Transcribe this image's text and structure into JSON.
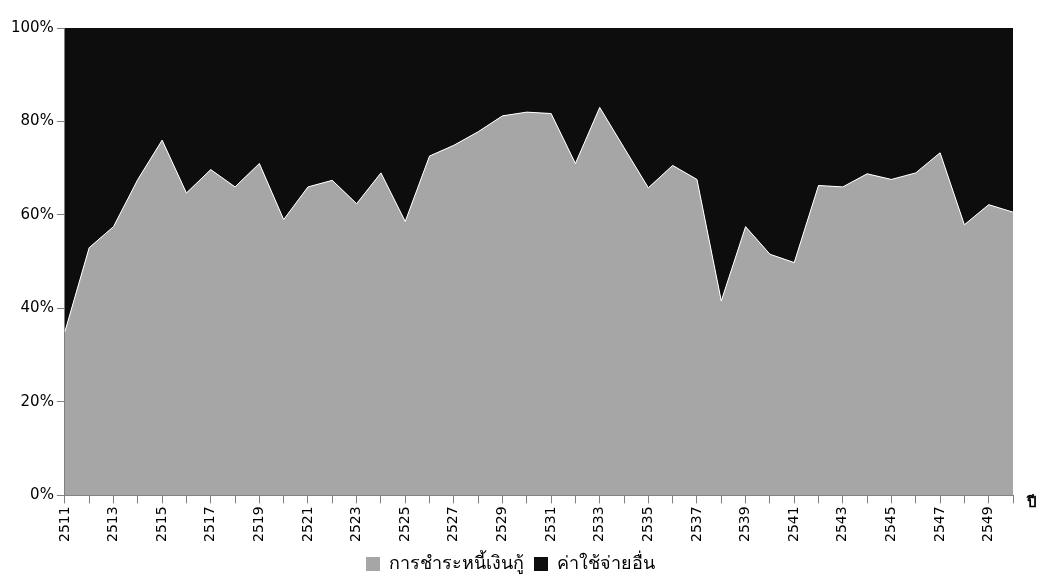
{
  "chart_data": {
    "type": "area",
    "stacked": true,
    "xlabel": "ปี",
    "categories": [
      "2511",
      null,
      "2513",
      null,
      "2515",
      null,
      "2517",
      null,
      "2519",
      null,
      "2521",
      null,
      "2523",
      null,
      "2525",
      null,
      "2527",
      null,
      "2529",
      null,
      "2531",
      null,
      "2533",
      null,
      "2535",
      null,
      "2537",
      null,
      "2539",
      null,
      "2541",
      null,
      "2543",
      null,
      "2545",
      null,
      "2547",
      null,
      "2549",
      null
    ],
    "series": [
      {
        "name": "การชำระหนี้เงินกู้",
        "color": "#a6a6a6",
        "values": [
          35,
          53,
          57.5,
          67.6,
          76,
          64.7,
          69.7,
          66,
          71,
          59,
          66,
          67.4,
          62.4,
          69,
          58.6,
          72.6,
          74.9,
          77.8,
          81.2,
          82,
          81.7,
          71,
          83,
          74.4,
          65.8,
          70.6,
          67.6,
          41.6,
          57.5,
          51.6,
          49.8,
          66.3,
          66,
          68.8,
          67.6,
          69,
          73.3,
          57.9,
          62.2,
          60.6
        ]
      },
      {
        "name": "ค่าใช้จ่ายอื่น",
        "color": "#0d0d0d",
        "values": [
          65,
          47,
          42.5,
          32.4,
          24,
          35.3,
          30.3,
          34,
          29,
          41,
          34,
          32.6,
          37.6,
          31,
          41.4,
          27.4,
          25.1,
          22.2,
          18.8,
          18,
          18.3,
          29,
          17,
          25.6,
          34.2,
          29.4,
          32.4,
          58.4,
          42.5,
          48.4,
          50.2,
          33.7,
          34,
          31.2,
          32.4,
          31,
          26.7,
          42.1,
          37.8,
          39.4
        ]
      }
    ],
    "ylim": [
      0,
      100
    ],
    "yticks": [
      {
        "value": 0,
        "label": "0%"
      },
      {
        "value": 20,
        "label": "20%"
      },
      {
        "value": 40,
        "label": "40%"
      },
      {
        "value": 60,
        "label": "60%"
      },
      {
        "value": 80,
        "label": "80%"
      },
      {
        "value": 100,
        "label": "100%"
      }
    ],
    "grid": false,
    "legend": "bottom"
  }
}
